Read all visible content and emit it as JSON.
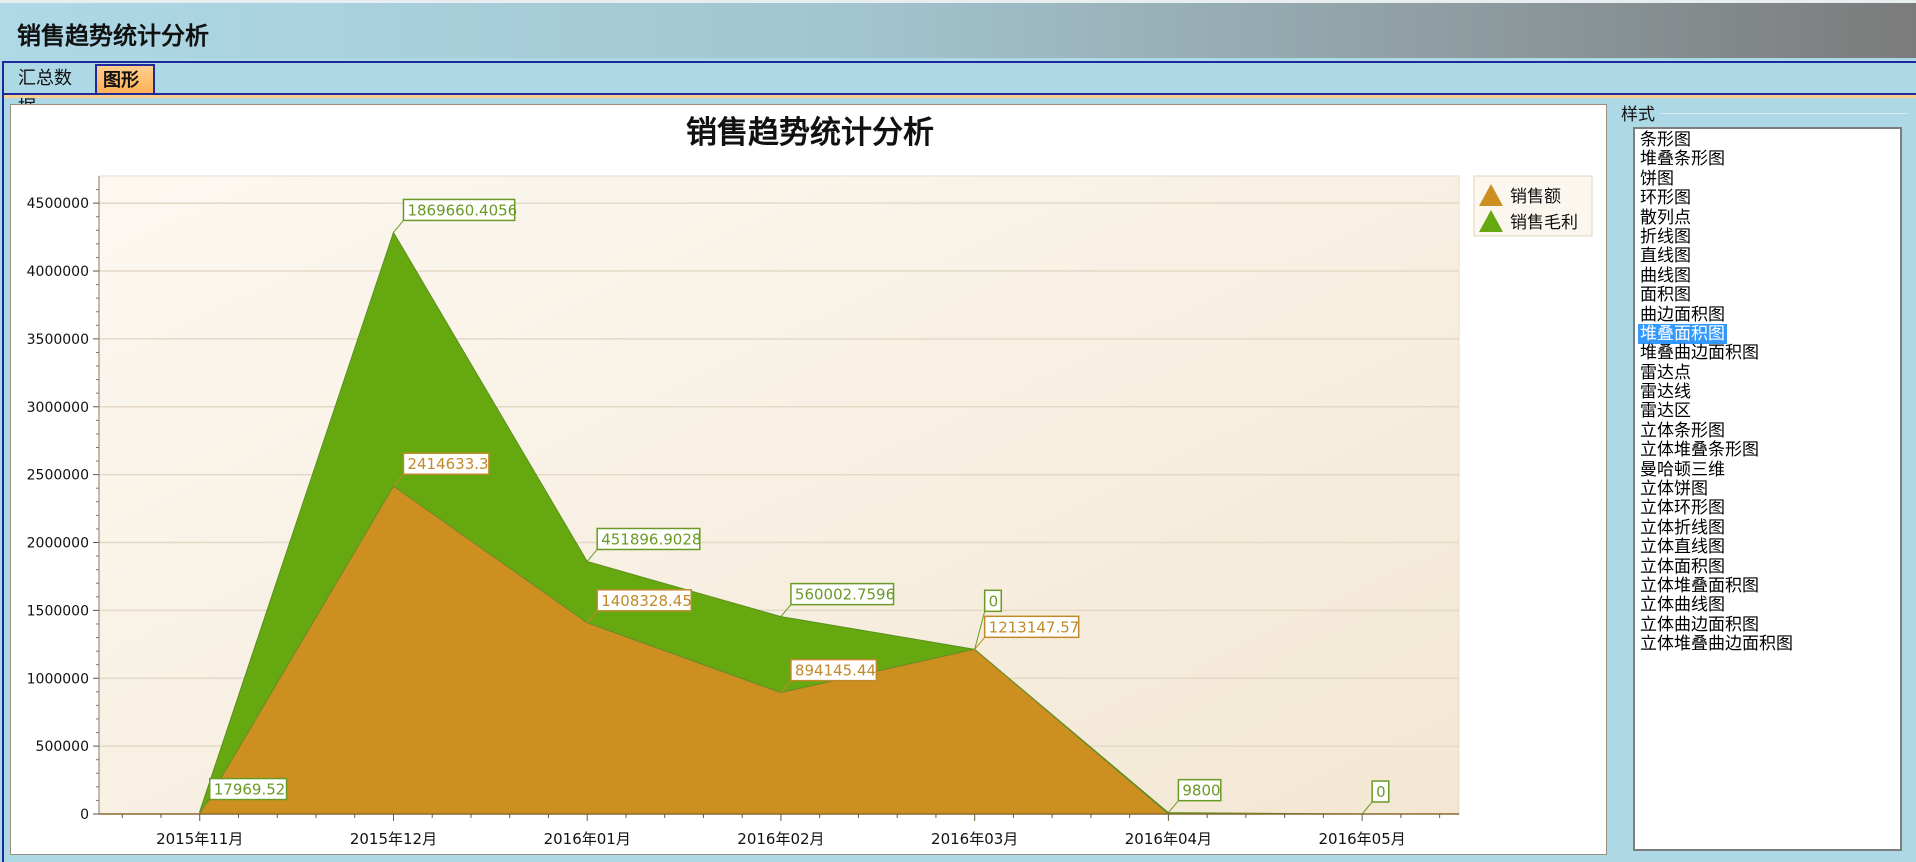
{
  "header": {
    "title": "销售趋势统计分析"
  },
  "tabs": [
    {
      "label": "汇总数据",
      "selected": false
    },
    {
      "label": "图形",
      "selected": true
    }
  ],
  "style_panel": {
    "label": "样式",
    "selected": "堆叠面积图",
    "items": [
      "条形图",
      "堆叠条形图",
      "饼图",
      "环形图",
      "散列点",
      "折线图",
      "直线图",
      "曲线图",
      "面积图",
      "曲边面积图",
      "堆叠面积图",
      "堆叠曲边面积图",
      "雷达点",
      "雷达线",
      "雷达区",
      "立体条形图",
      "立体堆叠条形图",
      "曼哈顿三维",
      "立体饼图",
      "立体环形图",
      "立体折线图",
      "立体直线图",
      "立体面积图",
      "立体堆叠面积图",
      "立体曲线图",
      "立体曲边面积图",
      "立体堆叠曲边面积图"
    ]
  },
  "chart_data": {
    "type": "area",
    "stacked": true,
    "title": "销售趋势统计分析",
    "categories": [
      "2015年11月",
      "2015年12月",
      "2016年01月",
      "2016年02月",
      "2016年03月",
      "2016年04月",
      "2016年05月"
    ],
    "series": [
      {
        "name": "销售额",
        "color": "#cd8f20",
        "values": [
          0,
          2414633.3,
          1408328.45,
          894145.44,
          1213147.57,
          0,
          0
        ],
        "labels": [
          "",
          "2414633.3",
          "1408328.45",
          "894145.44",
          "1213147.57",
          "",
          ""
        ]
      },
      {
        "name": "销售毛利",
        "color": "#66a80f",
        "values": [
          17969.52,
          1869660.4056,
          451896.9028,
          560002.7596,
          0,
          9800,
          0
        ],
        "labels": [
          "17969.52",
          "1869660.4056",
          "451896.9028",
          "560002.7596",
          "0",
          "9800",
          "0"
        ]
      }
    ],
    "yticks": [
      "0",
      "500000",
      "1000000",
      "1500000",
      "2000000",
      "2500000",
      "3000000",
      "3500000",
      "4000000",
      "4500000"
    ],
    "ylim": [
      0,
      4700000
    ],
    "grid": true,
    "legend": "top-right"
  }
}
